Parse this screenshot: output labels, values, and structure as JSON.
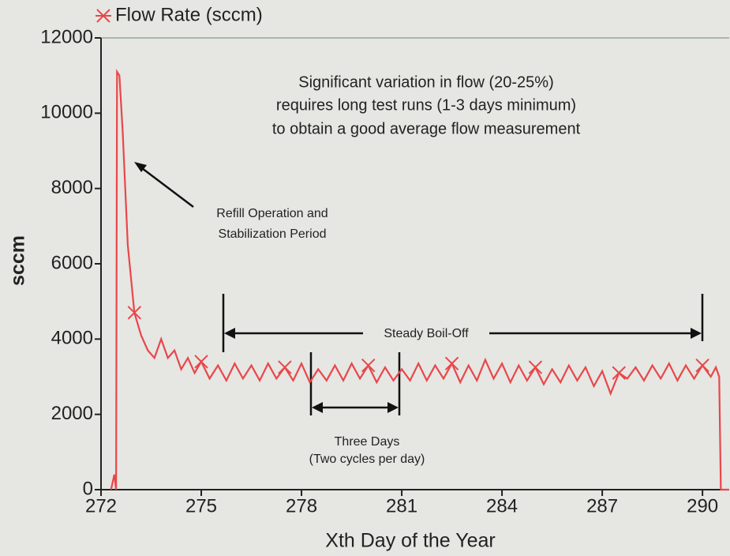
{
  "chart_data": {
    "type": "line",
    "annotations": [
      "Significant variation in flow (20-25%)",
      "requires long test runs (1-3 days minimum)",
      "to obtain a good average flow measurement",
      "Refill Operation and",
      "Stabilization Period",
      "Steady Boil-Off",
      "Three Days",
      "(Two cycles per day)"
    ],
    "xlabel": "Xth Day of the Year",
    "ylabel": "sccm",
    "x": [
      272.3,
      272.4,
      272.45,
      272.48,
      272.55,
      272.65,
      272.8,
      273.0,
      273.2,
      273.4,
      273.6,
      273.8,
      274.0,
      274.2,
      274.4,
      274.6,
      274.8,
      275.0,
      275.25,
      275.5,
      275.75,
      276,
      276.25,
      276.5,
      276.75,
      277,
      277.25,
      277.5,
      277.75,
      278,
      278.25,
      278.5,
      278.75,
      279,
      279.25,
      279.5,
      279.75,
      280,
      280.25,
      280.5,
      280.75,
      281,
      281.25,
      281.5,
      281.75,
      282,
      282.25,
      282.5,
      282.75,
      283,
      283.25,
      283.5,
      283.75,
      284,
      284.25,
      284.5,
      284.75,
      285,
      285.25,
      285.5,
      285.75,
      286,
      286.25,
      286.5,
      286.75,
      287,
      287.25,
      287.5,
      287.75,
      288,
      288.25,
      288.5,
      288.75,
      289,
      289.25,
      289.5,
      289.75,
      290,
      290.25,
      290.4,
      290.5,
      290.55,
      290.8
    ],
    "series": [
      {
        "name": "Flow Rate (sccm)",
        "color": "#e8474a",
        "values": [
          0,
          400,
          0,
          11100,
          11000,
          9500,
          6500,
          4700,
          4100,
          3700,
          3500,
          4000,
          3500,
          3700,
          3200,
          3500,
          3100,
          3400,
          2950,
          3300,
          2900,
          3350,
          2950,
          3300,
          2900,
          3350,
          2950,
          3250,
          2900,
          3350,
          2850,
          3200,
          2900,
          3300,
          2900,
          3350,
          2950,
          3300,
          2850,
          3250,
          2900,
          3200,
          2900,
          3350,
          2900,
          3300,
          2950,
          3350,
          2850,
          3300,
          2900,
          3450,
          2950,
          3350,
          2850,
          3300,
          2900,
          3250,
          2800,
          3200,
          2850,
          3300,
          2900,
          3250,
          2750,
          3150,
          2550,
          3100,
          2950,
          3250,
          2900,
          3300,
          2950,
          3350,
          2900,
          3300,
          2950,
          3300,
          3000,
          3250,
          3000,
          0,
          0
        ]
      }
    ],
    "xlim": [
      272,
      290.8
    ],
    "ylim": [
      0,
      12000
    ],
    "xticks": [
      272,
      275,
      278,
      281,
      284,
      287,
      290
    ],
    "yticks": [
      0,
      2000,
      4000,
      6000,
      8000,
      10000,
      12000
    ]
  }
}
